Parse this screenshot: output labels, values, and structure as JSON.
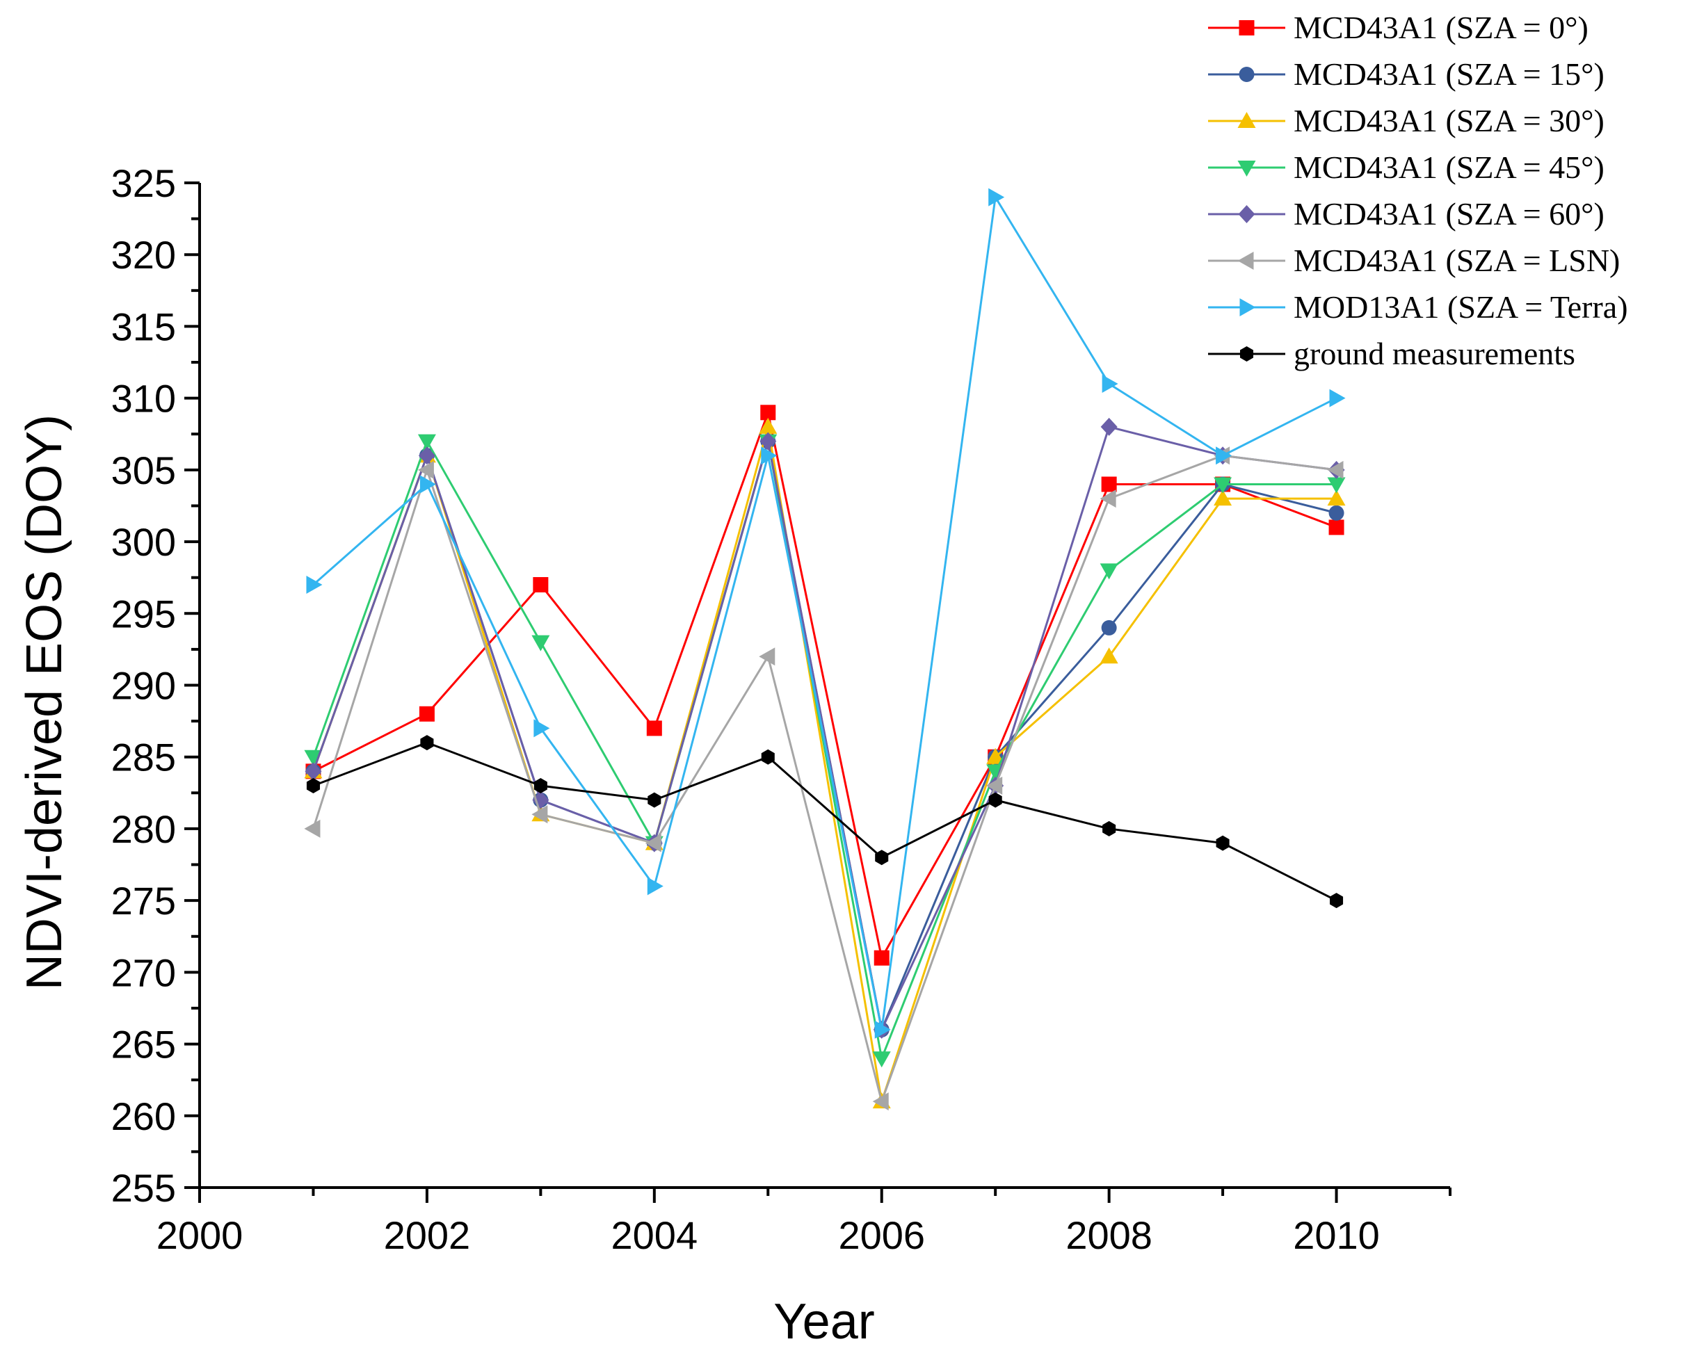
{
  "chart_data": {
    "type": "line",
    "title": "",
    "xlabel": "Year",
    "ylabel": "NDVI-derived EOS (DOY)",
    "xlim": [
      2000,
      2011
    ],
    "ylim": [
      255,
      325
    ],
    "xticks": [
      2000,
      2002,
      2004,
      2006,
      2008,
      2010
    ],
    "yticks": [
      255,
      260,
      265,
      270,
      275,
      280,
      285,
      290,
      295,
      300,
      305,
      310,
      315,
      320,
      325
    ],
    "x": [
      2001,
      2002,
      2003,
      2004,
      2005,
      2006,
      2007,
      2008,
      2009,
      2010
    ],
    "legend_position": "top-right",
    "series": [
      {
        "name": "MCD43A1 (SZA = 0°)",
        "color": "#ff0000",
        "marker": "square",
        "values": [
          284,
          288,
          297,
          287,
          309,
          271,
          285,
          304,
          304,
          301
        ]
      },
      {
        "name": "MCD43A1 (SZA = 15°)",
        "color": "#3a5d9c",
        "marker": "circle",
        "values": [
          284,
          306,
          282,
          279,
          307,
          266,
          285,
          294,
          304,
          302
        ]
      },
      {
        "name": "MCD43A1 (SZA = 30°)",
        "color": "#f5c000",
        "marker": "triangle-up",
        "values": [
          284,
          306,
          281,
          279,
          308,
          261,
          285,
          292,
          303,
          303
        ]
      },
      {
        "name": "MCD43A1 (SZA = 45°)",
        "color": "#2ecc71",
        "marker": "triangle-down",
        "values": [
          285,
          307,
          293,
          279,
          307,
          264,
          284,
          298,
          304,
          304
        ]
      },
      {
        "name": "MCD43A1 (SZA = 60°)",
        "color": "#6a5fa8",
        "marker": "diamond",
        "values": [
          284,
          306,
          282,
          279,
          307,
          266,
          283,
          308,
          306,
          305
        ]
      },
      {
        "name": "MCD43A1 (SZA = LSN)",
        "color": "#a6a6a6",
        "marker": "triangle-left",
        "values": [
          280,
          305,
          281,
          279,
          292,
          261,
          283,
          303,
          306,
          305
        ]
      },
      {
        "name": "MOD13A1 (SZA = Terra)",
        "color": "#33b5f0",
        "marker": "triangle-right",
        "values": [
          297,
          304,
          287,
          276,
          306,
          266,
          324,
          311,
          306,
          310
        ]
      },
      {
        "name": "ground measurements",
        "color": "#000000",
        "marker": "hexagon",
        "values": [
          283,
          286,
          283,
          282,
          285,
          278,
          282,
          280,
          279,
          275
        ]
      }
    ]
  }
}
